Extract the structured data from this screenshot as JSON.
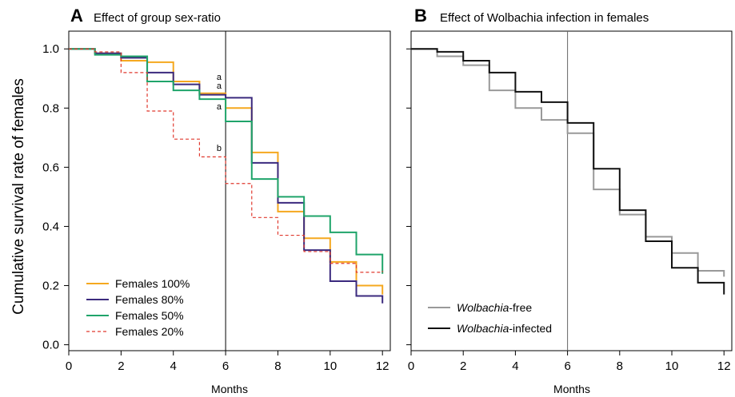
{
  "ylabel": "Cumulative survival rate of females",
  "chart_data": [
    {
      "type": "line",
      "step": true,
      "panel_letter": "A",
      "title": "Effect of group sex-ratio",
      "xlabel": "Months",
      "ylabel": "Cumulative survival rate of females",
      "xlim": [
        0,
        12.3
      ],
      "ylim": [
        -0.02,
        1.06
      ],
      "x_ticks": [
        "0",
        "2",
        "4",
        "6",
        "8",
        "10",
        "12"
      ],
      "y_ticks": [
        "0.0",
        "0.2",
        "0.4",
        "0.6",
        "0.8",
        "1.0"
      ],
      "vline_x": 6,
      "legend_position": "bottom-left",
      "series": [
        {
          "name": "Females 100%",
          "color": "#f5a81f",
          "dash": false,
          "x": [
            0,
            1,
            2,
            3,
            4,
            5,
            6,
            7,
            8,
            9,
            10,
            11,
            12
          ],
          "y": [
            1.0,
            0.985,
            0.96,
            0.955,
            0.89,
            0.85,
            0.8,
            0.65,
            0.45,
            0.36,
            0.28,
            0.2,
            0.17
          ]
        },
        {
          "name": "Females 80%",
          "color": "#3b2a7e",
          "dash": false,
          "x": [
            0,
            1,
            2,
            3,
            4,
            5,
            6,
            7,
            8,
            9,
            10,
            11,
            12
          ],
          "y": [
            1.0,
            0.985,
            0.97,
            0.92,
            0.88,
            0.845,
            0.835,
            0.615,
            0.48,
            0.32,
            0.215,
            0.165,
            0.14
          ]
        },
        {
          "name": "Females 50%",
          "color": "#1fa46a",
          "dash": false,
          "x": [
            0,
            1,
            2,
            3,
            4,
            5,
            6,
            7,
            8,
            9,
            10,
            11,
            12
          ],
          "y": [
            1.0,
            0.98,
            0.975,
            0.89,
            0.86,
            0.83,
            0.755,
            0.56,
            0.5,
            0.435,
            0.38,
            0.305,
            0.24
          ]
        },
        {
          "name": "Females 20%",
          "color": "#e0392e",
          "dash": true,
          "x": [
            0,
            1,
            2,
            3,
            4,
            5,
            6,
            7,
            8,
            9,
            10,
            11,
            12
          ],
          "y": [
            1.0,
            0.99,
            0.92,
            0.79,
            0.695,
            0.635,
            0.545,
            0.43,
            0.37,
            0.315,
            0.275,
            0.245,
            0.25
          ]
        }
      ],
      "annotations": [
        {
          "text": "a",
          "x": 5.75,
          "y": 0.895
        },
        {
          "text": "a",
          "x": 5.75,
          "y": 0.865
        },
        {
          "text": "a",
          "x": 5.75,
          "y": 0.795
        },
        {
          "text": "b",
          "x": 5.75,
          "y": 0.655
        }
      ]
    },
    {
      "type": "line",
      "step": true,
      "panel_letter": "B",
      "title": "Effect of Wolbachia infection in females",
      "xlabel": "Months",
      "xlim": [
        0,
        12.3
      ],
      "ylim": [
        -0.02,
        1.06
      ],
      "x_ticks": [
        "0",
        "2",
        "4",
        "6",
        "8",
        "10",
        "12"
      ],
      "vline_x": 6,
      "legend_position": "bottom-left",
      "series": [
        {
          "name_italic": "Wolbachia",
          "name_suffix": "-free",
          "color": "#999999",
          "dash": false,
          "x": [
            0,
            1,
            2,
            3,
            4,
            5,
            6,
            7,
            8,
            9,
            10,
            11,
            12
          ],
          "y": [
            1.0,
            0.975,
            0.945,
            0.86,
            0.8,
            0.76,
            0.715,
            0.525,
            0.44,
            0.365,
            0.31,
            0.25,
            0.23
          ]
        },
        {
          "name_italic": "Wolbachia",
          "name_suffix": "-infected",
          "color": "#111111",
          "dash": false,
          "x": [
            0,
            1,
            2,
            3,
            4,
            5,
            6,
            7,
            8,
            9,
            10,
            11,
            12
          ],
          "y": [
            1.0,
            0.99,
            0.96,
            0.92,
            0.855,
            0.82,
            0.75,
            0.595,
            0.455,
            0.35,
            0.26,
            0.21,
            0.17
          ]
        }
      ]
    }
  ]
}
